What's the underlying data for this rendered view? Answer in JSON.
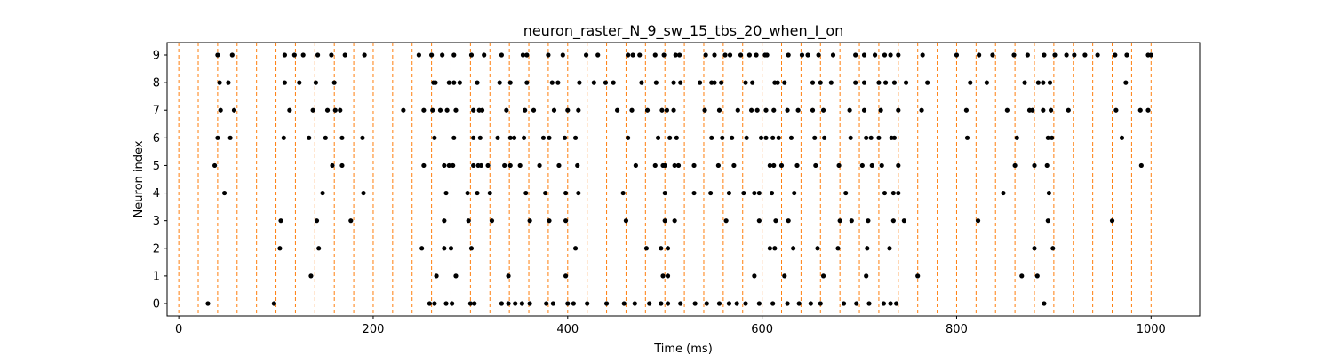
{
  "chart_data": {
    "type": "scatter",
    "title": "neuron_raster_N_9_sw_15_tbs_20_when_I_on",
    "xlabel": "Time (ms)",
    "ylabel": "Neuron index",
    "xlim": [
      -12,
      1050
    ],
    "ylim": [
      -0.45,
      9.45
    ],
    "xticks": [
      0,
      200,
      400,
      600,
      800,
      1000
    ],
    "yticks": [
      0,
      1,
      2,
      3,
      4,
      5,
      6,
      7,
      8,
      9
    ],
    "grid": false,
    "legend": "none",
    "marker_color": "#000000",
    "vline_color": "#ff7f0e",
    "vlines": [
      0,
      20,
      40,
      60,
      80,
      100,
      120,
      140,
      160,
      180,
      200,
      220,
      240,
      260,
      280,
      300,
      320,
      340,
      360,
      380,
      400,
      420,
      440,
      460,
      480,
      500,
      520,
      540,
      560,
      580,
      600,
      620,
      640,
      660,
      680,
      700,
      720,
      740,
      760,
      780,
      800,
      820,
      840,
      860,
      880,
      900,
      920,
      940,
      960,
      980,
      1000
    ],
    "spikes": [
      [
        30,
        98,
        258,
        263,
        275,
        281,
        300,
        304,
        332,
        339,
        346,
        353,
        361,
        378,
        385,
        400,
        406,
        420,
        440,
        458,
        469,
        484,
        496,
        503,
        516,
        531,
        543,
        556,
        566,
        574,
        583,
        597,
        611,
        626,
        638,
        650,
        660,
        684,
        697,
        710,
        725,
        732,
        738,
        890
      ],
      [
        136,
        265,
        285,
        339,
        398,
        498,
        503,
        592,
        623,
        663,
        707,
        760,
        867,
        883
      ],
      [
        104,
        144,
        250,
        273,
        280,
        301,
        408,
        481,
        496,
        503,
        608,
        613,
        632,
        657,
        678,
        708,
        731,
        880,
        899
      ],
      [
        105,
        142,
        177,
        273,
        298,
        322,
        361,
        381,
        398,
        460,
        500,
        510,
        563,
        597,
        614,
        627,
        680,
        692,
        709,
        735,
        746,
        822,
        894,
        960
      ],
      [
        47,
        148,
        190,
        275,
        297,
        307,
        320,
        357,
        377,
        398,
        411,
        457,
        500,
        530,
        547,
        566,
        581,
        592,
        597,
        610,
        633,
        686,
        726,
        735,
        740,
        848,
        895
      ],
      [
        37,
        158,
        168,
        252,
        273,
        278,
        282,
        303,
        308,
        311,
        318,
        335,
        341,
        351,
        371,
        391,
        410,
        470,
        490,
        498,
        500,
        510,
        514,
        530,
        555,
        571,
        608,
        612,
        620,
        636,
        655,
        679,
        703,
        713,
        723,
        740,
        860,
        880,
        893,
        990
      ],
      [
        40,
        53,
        108,
        134,
        151,
        168,
        189,
        263,
        283,
        303,
        310,
        328,
        341,
        345,
        355,
        375,
        381,
        397,
        408,
        462,
        493,
        505,
        512,
        548,
        559,
        569,
        584,
        599,
        604,
        611,
        617,
        630,
        654,
        664,
        691,
        707,
        712,
        720,
        733,
        736,
        811,
        862,
        894,
        898,
        970
      ],
      [
        43,
        57,
        114,
        138,
        153,
        161,
        166,
        231,
        252,
        261,
        269,
        276,
        285,
        303,
        309,
        312,
        337,
        356,
        365,
        386,
        400,
        411,
        451,
        466,
        482,
        497,
        502,
        509,
        541,
        556,
        575,
        589,
        595,
        604,
        612,
        626,
        637,
        652,
        663,
        690,
        705,
        722,
        740,
        764,
        810,
        852,
        875,
        878,
        889,
        897,
        915,
        964,
        989,
        997
      ],
      [
        42,
        51,
        109,
        124,
        141,
        160,
        262,
        264,
        278,
        283,
        289,
        307,
        330,
        341,
        358,
        384,
        390,
        412,
        427,
        439,
        447,
        476,
        491,
        509,
        516,
        536,
        548,
        551,
        558,
        583,
        590,
        613,
        616,
        623,
        652,
        660,
        671,
        696,
        705,
        720,
        727,
        736,
        748,
        770,
        814,
        831,
        870,
        884,
        889,
        896,
        974
      ],
      [
        40,
        55,
        109,
        119,
        128,
        143,
        157,
        171,
        191,
        247,
        260,
        271,
        283,
        301,
        314,
        332,
        354,
        358,
        380,
        395,
        419,
        431,
        462,
        467,
        474,
        490,
        499,
        511,
        515,
        542,
        551,
        562,
        567,
        578,
        587,
        594,
        603,
        605,
        627,
        641,
        647,
        658,
        673,
        696,
        705,
        716,
        726,
        732,
        740,
        765,
        800,
        823,
        837,
        859,
        873,
        890,
        901,
        913,
        921,
        932,
        945,
        963,
        975,
        997,
        1000
      ]
    ]
  }
}
